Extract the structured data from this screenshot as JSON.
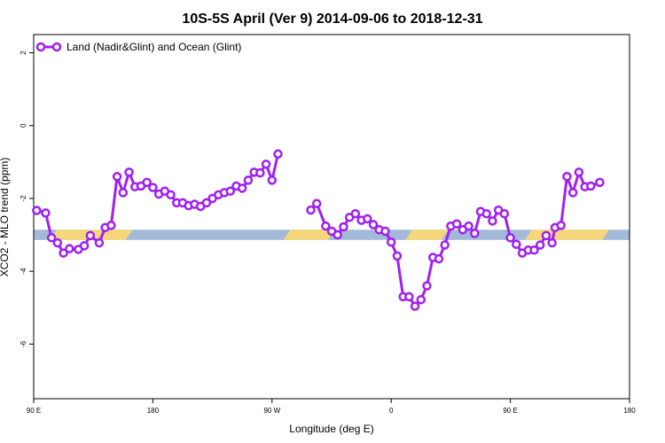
{
  "chart_data": {
    "type": "line",
    "title": "10S-5S April (Ver 9)   2014-09-06 to 2018-12-31",
    "xlabel": "Longitude (deg E)",
    "ylabel": "XCO2 - MLO trend (ppm)",
    "xlim": [
      0,
      1
    ],
    "ylim": [
      -7.5,
      2.5
    ],
    "x_ticks": [
      {
        "value": 0.0,
        "label": "90 E"
      },
      {
        "value": 0.2,
        "label": "180"
      },
      {
        "value": 0.4,
        "label": "90 W"
      },
      {
        "value": 0.6,
        "label": "0"
      },
      {
        "value": 0.8,
        "label": "90 E"
      },
      {
        "value": 1.0,
        "label": "180"
      }
    ],
    "y_ticks": [
      2,
      0,
      -2,
      -4,
      -6
    ],
    "grid": false,
    "legend_position": "top-left",
    "series": [
      {
        "name": "Land (Nadir&Glint) and Ocean (Glint)",
        "color": "#a020f0",
        "segments": [
          [
            [
              0.005,
              -2.33
            ],
            [
              0.02,
              -2.4
            ],
            [
              0.03,
              -3.08
            ],
            [
              0.04,
              -3.22
            ],
            [
              0.05,
              -3.5
            ],
            [
              0.06,
              -3.38
            ],
            [
              0.075,
              -3.4
            ],
            [
              0.085,
              -3.3
            ],
            [
              0.095,
              -3.02
            ],
            [
              0.11,
              -3.22
            ],
            [
              0.12,
              -2.8
            ],
            [
              0.13,
              -2.74
            ],
            [
              0.14,
              -1.4
            ],
            [
              0.15,
              -1.84
            ],
            [
              0.16,
              -1.28
            ],
            [
              0.17,
              -1.68
            ],
            [
              0.18,
              -1.66
            ],
            [
              0.19,
              -1.56
            ],
            [
              0.2,
              -1.7
            ],
            [
              0.21,
              -1.88
            ],
            [
              0.22,
              -1.8
            ],
            [
              0.23,
              -1.9
            ],
            [
              0.24,
              -2.12
            ],
            [
              0.25,
              -2.12
            ],
            [
              0.26,
              -2.2
            ],
            [
              0.27,
              -2.16
            ],
            [
              0.28,
              -2.22
            ],
            [
              0.29,
              -2.12
            ],
            [
              0.3,
              -2.0
            ],
            [
              0.31,
              -1.9
            ],
            [
              0.32,
              -1.84
            ],
            [
              0.33,
              -1.8
            ],
            [
              0.34,
              -1.66
            ],
            [
              0.35,
              -1.72
            ],
            [
              0.36,
              -1.5
            ],
            [
              0.37,
              -1.28
            ],
            [
              0.38,
              -1.3
            ],
            [
              0.39,
              -1.06
            ],
            [
              0.4,
              -1.5
            ],
            [
              0.41,
              -0.78
            ]
          ],
          [
            [
              0.465,
              -2.32
            ],
            [
              0.475,
              -2.14
            ],
            [
              0.49,
              -2.76
            ],
            [
              0.5,
              -2.9
            ],
            [
              0.51,
              -3.0
            ],
            [
              0.52,
              -2.78
            ],
            [
              0.53,
              -2.52
            ],
            [
              0.54,
              -2.42
            ],
            [
              0.55,
              -2.6
            ],
            [
              0.56,
              -2.56
            ],
            [
              0.57,
              -2.72
            ],
            [
              0.58,
              -2.86
            ],
            [
              0.59,
              -2.9
            ],
            [
              0.6,
              -3.2
            ],
            [
              0.61,
              -3.58
            ],
            [
              0.62,
              -4.7
            ],
            [
              0.63,
              -4.7
            ],
            [
              0.64,
              -4.96
            ],
            [
              0.65,
              -4.78
            ],
            [
              0.66,
              -4.4
            ],
            [
              0.67,
              -3.62
            ],
            [
              0.68,
              -3.66
            ],
            [
              0.69,
              -3.28
            ],
            [
              0.7,
              -2.76
            ],
            [
              0.71,
              -2.7
            ],
            [
              0.72,
              -2.86
            ],
            [
              0.73,
              -2.76
            ],
            [
              0.74,
              -2.96
            ],
            [
              0.75,
              -2.36
            ],
            [
              0.76,
              -2.42
            ],
            [
              0.77,
              -2.62
            ],
            [
              0.78,
              -2.32
            ],
            [
              0.79,
              -2.42
            ],
            [
              0.8,
              -3.08
            ],
            [
              0.81,
              -3.26
            ],
            [
              0.82,
              -3.5
            ],
            [
              0.83,
              -3.42
            ],
            [
              0.84,
              -3.42
            ],
            [
              0.85,
              -3.28
            ],
            [
              0.86,
              -3.02
            ],
            [
              0.87,
              -3.22
            ],
            [
              0.875,
              -2.8
            ],
            [
              0.885,
              -2.74
            ],
            [
              0.895,
              -1.4
            ],
            [
              0.905,
              -1.84
            ],
            [
              0.915,
              -1.28
            ],
            [
              0.925,
              -1.68
            ],
            [
              0.935,
              -1.66
            ],
            [
              0.95,
              -1.56
            ]
          ]
        ]
      }
    ],
    "colors": {
      "land_band": "#f5d77a",
      "ocean_band": "#a3b9d8",
      "line": "#a020f0",
      "marker_fill": "#ffffff"
    },
    "land_ocean_band": {
      "y_center": -3.0,
      "thickness_ppm": 0.28,
      "land_ranges": [
        [
          0.033,
          0.16
        ],
        [
          0.425,
          0.5
        ],
        [
          0.63,
          0.69
        ],
        [
          0.83,
          0.96
        ]
      ]
    }
  }
}
